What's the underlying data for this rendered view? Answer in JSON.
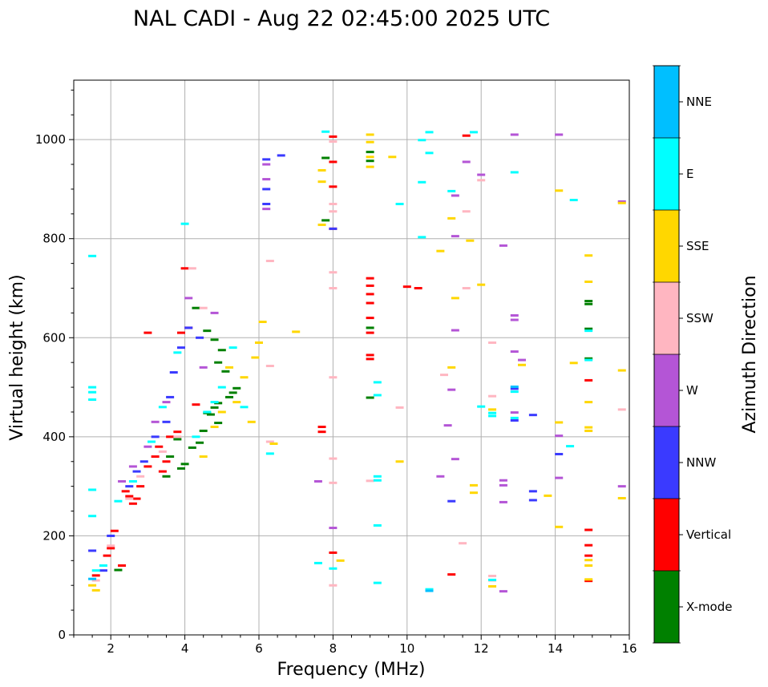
{
  "chart_data": {
    "type": "scatter",
    "title": "NAL CADI - Aug 22 02:45:00 2025 UTC",
    "xlabel": "Frequency (MHz)",
    "ylabel": "Virtual height (km)",
    "xlim": [
      1,
      16
    ],
    "ylim": [
      0,
      1120
    ],
    "xticks": [
      2,
      4,
      6,
      8,
      10,
      12,
      14,
      16
    ],
    "yticks": [
      0,
      200,
      400,
      600,
      800,
      1000
    ],
    "grid": true,
    "colorbar": {
      "label": "Azimuth Direction",
      "categories": [
        "X-mode",
        "Vertical",
        "NNW",
        "W",
        "SSW",
        "SSE",
        "E",
        "NNE"
      ],
      "colors": [
        "#008000",
        "#ff0000",
        "#3a3aff",
        "#b455d6",
        "#ffb6c1",
        "#ffd700",
        "#00ffff",
        "#00bfff"
      ]
    },
    "series": [
      {
        "name": "X-mode",
        "points": [
          [
            2.2,
            131
          ],
          [
            3.5,
            320
          ],
          [
            3.9,
            336
          ],
          [
            4.0,
            345
          ],
          [
            4.2,
            378
          ],
          [
            4.4,
            388
          ],
          [
            4.5,
            412
          ],
          [
            4.6,
            448
          ],
          [
            4.7,
            445
          ],
          [
            4.8,
            459
          ],
          [
            4.9,
            468
          ],
          [
            4.9,
            550
          ],
          [
            5.0,
            575
          ],
          [
            4.6,
            614
          ],
          [
            4.3,
            660
          ],
          [
            4.8,
            596
          ],
          [
            5.1,
            532
          ],
          [
            5.3,
            489
          ],
          [
            5.4,
            498
          ],
          [
            7.8,
            963
          ],
          [
            7.8,
            837
          ],
          [
            9.0,
            975
          ],
          [
            9.0,
            957
          ],
          [
            9.0,
            620
          ],
          [
            9.0,
            479
          ],
          [
            14.9,
            674
          ],
          [
            14.9,
            668
          ],
          [
            14.9,
            558
          ],
          [
            14.9,
            618
          ],
          [
            3.8,
            395
          ],
          [
            3.6,
            360
          ],
          [
            4.9,
            428
          ],
          [
            5.2,
            480
          ]
        ]
      },
      {
        "name": "Vertical",
        "points": [
          [
            1.6,
            120
          ],
          [
            1.9,
            160
          ],
          [
            2.0,
            175
          ],
          [
            2.1,
            210
          ],
          [
            2.3,
            140
          ],
          [
            2.4,
            290
          ],
          [
            2.6,
            265
          ],
          [
            2.8,
            300
          ],
          [
            3.0,
            340
          ],
          [
            3.0,
            610
          ],
          [
            3.2,
            360
          ],
          [
            3.3,
            380
          ],
          [
            3.5,
            350
          ],
          [
            3.6,
            400
          ],
          [
            3.8,
            410
          ],
          [
            3.9,
            610
          ],
          [
            4.0,
            740
          ],
          [
            4.1,
            620
          ],
          [
            4.3,
            465
          ],
          [
            2.5,
            280
          ],
          [
            2.7,
            275
          ],
          [
            3.4,
            330
          ],
          [
            7.7,
            420
          ],
          [
            7.7,
            410
          ],
          [
            8.0,
            1006
          ],
          [
            8.0,
            955
          ],
          [
            8.0,
            905
          ],
          [
            8.0,
            820
          ],
          [
            8.0,
            166
          ],
          [
            9.0,
            720
          ],
          [
            9.0,
            705
          ],
          [
            9.0,
            688
          ],
          [
            9.0,
            670
          ],
          [
            9.0,
            640
          ],
          [
            9.0,
            610
          ],
          [
            9.0,
            565
          ],
          [
            9.0,
            557
          ],
          [
            10.0,
            703
          ],
          [
            10.3,
            700
          ],
          [
            11.2,
            122
          ],
          [
            11.6,
            1008
          ],
          [
            14.9,
            212
          ],
          [
            14.9,
            181
          ],
          [
            14.9,
            160
          ],
          [
            14.9,
            109
          ],
          [
            14.9,
            514
          ]
        ]
      },
      {
        "name": "NNW",
        "points": [
          [
            1.5,
            170
          ],
          [
            1.8,
            130
          ],
          [
            2.0,
            200
          ],
          [
            2.5,
            300
          ],
          [
            2.7,
            330
          ],
          [
            2.9,
            350
          ],
          [
            3.2,
            400
          ],
          [
            3.5,
            430
          ],
          [
            3.6,
            480
          ],
          [
            3.7,
            530
          ],
          [
            3.9,
            580
          ],
          [
            4.1,
            620
          ],
          [
            4.4,
            600
          ],
          [
            6.2,
            960
          ],
          [
            6.2,
            900
          ],
          [
            6.2,
            870
          ],
          [
            6.6,
            968
          ],
          [
            11.2,
            270
          ],
          [
            12.9,
            497
          ],
          [
            12.9,
            433
          ],
          [
            13.4,
            444
          ],
          [
            13.4,
            290
          ],
          [
            13.4,
            272
          ],
          [
            14.1,
            365
          ],
          [
            8.0,
            820
          ]
        ]
      },
      {
        "name": "W",
        "points": [
          [
            2.3,
            310
          ],
          [
            2.6,
            340
          ],
          [
            3.0,
            380
          ],
          [
            3.2,
            430
          ],
          [
            3.5,
            470
          ],
          [
            4.1,
            680
          ],
          [
            4.5,
            540
          ],
          [
            4.8,
            650
          ],
          [
            6.2,
            950
          ],
          [
            6.2,
            920
          ],
          [
            6.2,
            860
          ],
          [
            7.6,
            310
          ],
          [
            8.0,
            216
          ],
          [
            10.9,
            320
          ],
          [
            11.2,
            495
          ],
          [
            11.1,
            423
          ],
          [
            11.3,
            355
          ],
          [
            11.3,
            615
          ],
          [
            11.3,
            887
          ],
          [
            11.3,
            805
          ],
          [
            11.6,
            955
          ],
          [
            12.0,
            929
          ],
          [
            12.6,
            786
          ],
          [
            12.9,
            645
          ],
          [
            12.9,
            636
          ],
          [
            12.9,
            572
          ],
          [
            12.9,
            449
          ],
          [
            13.1,
            555
          ],
          [
            12.6,
            312
          ],
          [
            12.6,
            302
          ],
          [
            12.6,
            268
          ],
          [
            12.6,
            88
          ],
          [
            12.9,
            1010
          ],
          [
            14.1,
            1010
          ],
          [
            14.1,
            402
          ],
          [
            14.1,
            317
          ],
          [
            15.8,
            875
          ],
          [
            15.8,
            300
          ]
        ]
      },
      {
        "name": "SSW",
        "points": [
          [
            1.6,
            110
          ],
          [
            2.0,
            180
          ],
          [
            2.5,
            275
          ],
          [
            2.8,
            320
          ],
          [
            3.4,
            370
          ],
          [
            3.8,
            400
          ],
          [
            4.2,
            740
          ],
          [
            4.5,
            660
          ],
          [
            6.3,
            755
          ],
          [
            6.3,
            543
          ],
          [
            6.3,
            390
          ],
          [
            8.0,
            996
          ],
          [
            8.0,
            870
          ],
          [
            8.0,
            855
          ],
          [
            8.0,
            732
          ],
          [
            8.0,
            700
          ],
          [
            8.0,
            520
          ],
          [
            8.0,
            356
          ],
          [
            8.0,
            307
          ],
          [
            8.0,
            100
          ],
          [
            9.0,
            311
          ],
          [
            9.8,
            459
          ],
          [
            11.0,
            525
          ],
          [
            11.5,
            185
          ],
          [
            11.6,
            855
          ],
          [
            11.6,
            700
          ],
          [
            12.0,
            918
          ],
          [
            12.3,
            482
          ],
          [
            12.3,
            590
          ],
          [
            12.3,
            119
          ],
          [
            12.3,
            110
          ],
          [
            15.8,
            455
          ]
        ]
      },
      {
        "name": "SSE",
        "points": [
          [
            1.5,
            100
          ],
          [
            1.6,
            90
          ],
          [
            4.5,
            360
          ],
          [
            4.8,
            420
          ],
          [
            5.0,
            450
          ],
          [
            5.2,
            540
          ],
          [
            5.4,
            470
          ],
          [
            5.6,
            520
          ],
          [
            5.8,
            430
          ],
          [
            5.9,
            560
          ],
          [
            6.0,
            590
          ],
          [
            6.1,
            632
          ],
          [
            6.4,
            386
          ],
          [
            7.0,
            612
          ],
          [
            7.7,
            938
          ],
          [
            7.7,
            915
          ],
          [
            7.7,
            828
          ],
          [
            8.2,
            150
          ],
          [
            9.0,
            1010
          ],
          [
            9.0,
            995
          ],
          [
            9.0,
            965
          ],
          [
            9.0,
            945
          ],
          [
            9.6,
            965
          ],
          [
            9.8,
            350
          ],
          [
            10.9,
            775
          ],
          [
            11.2,
            540
          ],
          [
            11.2,
            841
          ],
          [
            11.3,
            680
          ],
          [
            11.7,
            796
          ],
          [
            11.8,
            302
          ],
          [
            11.8,
            287
          ],
          [
            12.0,
            707
          ],
          [
            12.3,
            455
          ],
          [
            12.3,
            98
          ],
          [
            13.1,
            545
          ],
          [
            13.8,
            281
          ],
          [
            14.1,
            429
          ],
          [
            14.1,
            218
          ],
          [
            14.1,
            897
          ],
          [
            14.5,
            549
          ],
          [
            14.9,
            766
          ],
          [
            14.9,
            713
          ],
          [
            14.9,
            470
          ],
          [
            14.9,
            419
          ],
          [
            14.9,
            412
          ],
          [
            14.9,
            151
          ],
          [
            14.9,
            140
          ],
          [
            14.9,
            112
          ],
          [
            15.8,
            534
          ],
          [
            15.8,
            276
          ],
          [
            15.8,
            872
          ]
        ]
      },
      {
        "name": "E",
        "points": [
          [
            1.5,
            765
          ],
          [
            1.5,
            500
          ],
          [
            1.5,
            490
          ],
          [
            1.5,
            475
          ],
          [
            1.5,
            293
          ],
          [
            1.5,
            240
          ],
          [
            1.6,
            130
          ],
          [
            1.8,
            140
          ],
          [
            2.2,
            270
          ],
          [
            2.6,
            310
          ],
          [
            3.1,
            390
          ],
          [
            3.4,
            460
          ],
          [
            3.8,
            570
          ],
          [
            4.0,
            830
          ],
          [
            4.3,
            400
          ],
          [
            4.6,
            450
          ],
          [
            4.8,
            470
          ],
          [
            5.0,
            500
          ],
          [
            5.3,
            580
          ],
          [
            5.6,
            460
          ],
          [
            6.3,
            366
          ],
          [
            7.6,
            145
          ],
          [
            7.8,
            1016
          ],
          [
            8.0,
            134
          ],
          [
            9.2,
            510
          ],
          [
            9.2,
            484
          ],
          [
            9.2,
            320
          ],
          [
            9.2,
            312
          ],
          [
            9.2,
            221
          ],
          [
            9.2,
            105
          ],
          [
            9.8,
            870
          ],
          [
            10.4,
            914
          ],
          [
            10.4,
            999
          ],
          [
            10.4,
            803
          ],
          [
            10.6,
            1015
          ],
          [
            10.6,
            973
          ],
          [
            10.6,
            92
          ],
          [
            11.2,
            896
          ],
          [
            11.8,
            1015
          ],
          [
            12.0,
            461
          ],
          [
            12.3,
            448
          ],
          [
            12.3,
            442
          ],
          [
            12.3,
            111
          ],
          [
            12.9,
            934
          ],
          [
            12.9,
            491
          ],
          [
            12.9,
            438
          ],
          [
            14.4,
            381
          ],
          [
            14.5,
            878
          ],
          [
            14.9,
            614
          ],
          [
            14.9,
            555
          ]
        ]
      },
      {
        "name": "NNE",
        "points": [
          [
            1.5,
            113
          ],
          [
            10.6,
            89
          ],
          [
            12.9,
            501
          ]
        ]
      }
    ]
  }
}
